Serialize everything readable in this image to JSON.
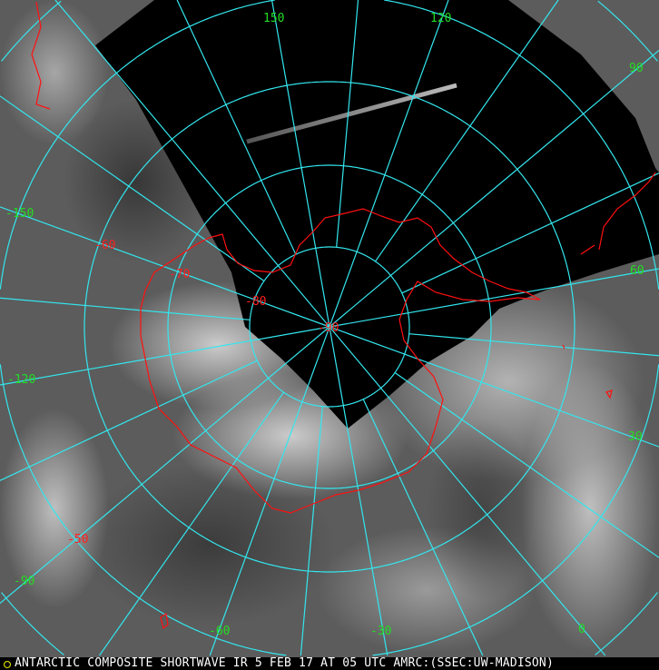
{
  "caption": "ANTARCTIC COMPOSITE SHORTWAVE IR 5 FEB 17 AT 05 UTC AMRC:(SSEC:UW-MADISON)",
  "colors": {
    "graticule": "#33e6ee",
    "longitude_labels": "#22dd22",
    "latitude_labels": "#ff2020",
    "coastline": "#ff1010",
    "no_data": "#000000"
  },
  "longitude_labels": [
    "150",
    "120",
    "90",
    "60",
    "30",
    "0",
    "-30",
    "-60",
    "-90",
    "-120",
    "-150"
  ],
  "latitude_labels": [
    "-50",
    "-60",
    "-70",
    "-80",
    "-90"
  ]
}
